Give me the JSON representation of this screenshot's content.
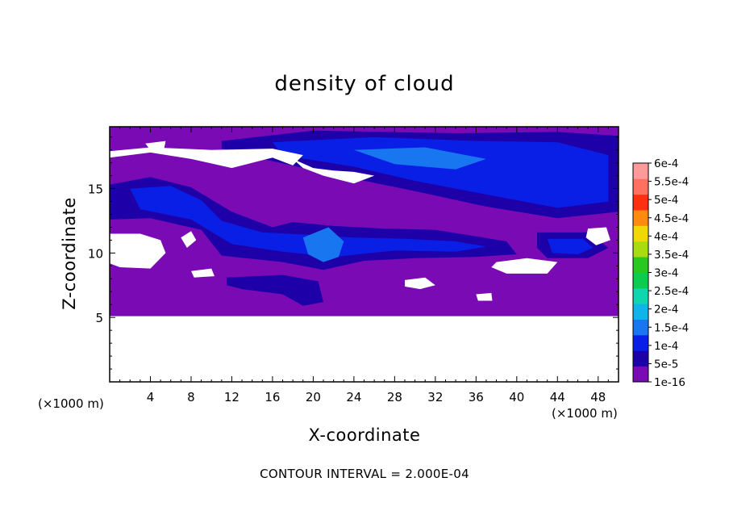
{
  "chart_data": {
    "type": "heatmap",
    "title": "density of cloud",
    "xlabel": "X-coordinate",
    "ylabel": "Z-coordinate",
    "x_unit": "(×1000 m)",
    "y_unit": "(×1000 m)",
    "xlim": [
      0,
      50
    ],
    "ylim": [
      0,
      19.8
    ],
    "x_ticks": [
      4,
      8,
      12,
      16,
      20,
      24,
      28,
      32,
      36,
      40,
      44,
      48
    ],
    "y_ticks": [
      5,
      10,
      15
    ],
    "footer": "CONTOUR INTERVAL = 2.000E-04",
    "colorbar": {
      "levels": [
        "1e-16",
        "5e-5",
        "1e-4",
        "1.5e-4",
        "2e-4",
        "2.5e-4",
        "3e-4",
        "3.5e-4",
        "4e-4",
        "4.5e-4",
        "5e-4",
        "5.5e-4",
        "6e-4"
      ],
      "colors": [
        "#7a0ab4",
        "#1e00a8",
        "#0a1fe6",
        "#1877f0",
        "#10b4e8",
        "#10d6b0",
        "#0ccc50",
        "#28c820",
        "#a8dc10",
        "#f0d808",
        "#ff8a10",
        "#ff3010",
        "#ff7060",
        "#ff9a9a"
      ]
    },
    "field": {
      "background_level": "1e-16",
      "cloud_base_z": 5.1,
      "regions": [
        {
          "level": "5e-5",
          "polygon": [
            [
              11,
              18.7
            ],
            [
              20,
              19.5
            ],
            [
              34,
              19.3
            ],
            [
              44,
              19.4
            ],
            [
              50,
              19.1
            ],
            [
              50,
              13.2
            ],
            [
              44,
              12.7
            ],
            [
              37,
              13.6
            ],
            [
              30,
              14.8
            ],
            [
              22,
              16.1
            ],
            [
              15,
              17.3
            ],
            [
              11,
              18.1
            ]
          ]
        },
        {
          "level": "1e-4",
          "polygon": [
            [
              16,
              18.6
            ],
            [
              26,
              19.0
            ],
            [
              36,
              18.7
            ],
            [
              44,
              18.6
            ],
            [
              49,
              17.6
            ],
            [
              49,
              14.0
            ],
            [
              44,
              13.5
            ],
            [
              38,
              14.4
            ],
            [
              30,
              15.6
            ],
            [
              24,
              16.7
            ],
            [
              17,
              17.6
            ]
          ]
        },
        {
          "level": "1.5e-4",
          "polygon": [
            [
              24,
              18.0
            ],
            [
              31,
              18.2
            ],
            [
              37,
              17.3
            ],
            [
              34,
              16.5
            ],
            [
              28,
              16.9
            ]
          ]
        },
        {
          "level": "5e-5",
          "polygon": [
            [
              0,
              15.3
            ],
            [
              4,
              15.9
            ],
            [
              8,
              15.1
            ],
            [
              12,
              13.2
            ],
            [
              16,
              12.0
            ],
            [
              18,
              12.4
            ],
            [
              22,
              12.1
            ],
            [
              27,
              11.9
            ],
            [
              32,
              11.8
            ],
            [
              36,
              11.3
            ],
            [
              39,
              10.9
            ],
            [
              40,
              9.9
            ],
            [
              36,
              9.7
            ],
            [
              30,
              9.6
            ],
            [
              25,
              9.4
            ],
            [
              21,
              8.7
            ],
            [
              17,
              9.3
            ],
            [
              11,
              9.8
            ],
            [
              9,
              11.8
            ],
            [
              4,
              12.7
            ],
            [
              0,
              12.6
            ]
          ]
        },
        {
          "level": "1e-4",
          "polygon": [
            [
              2,
              15.0
            ],
            [
              6,
              15.2
            ],
            [
              9,
              14.1
            ],
            [
              11,
              12.5
            ],
            [
              15,
              11.6
            ],
            [
              20,
              11.4
            ],
            [
              24,
              11.2
            ],
            [
              29,
              11.1
            ],
            [
              34,
              10.9
            ],
            [
              37,
              10.5
            ],
            [
              34,
              10.1
            ],
            [
              28,
              10.2
            ],
            [
              22,
              9.7
            ],
            [
              17,
              10.1
            ],
            [
              12,
              10.7
            ],
            [
              8,
              12.6
            ],
            [
              3,
              13.4
            ]
          ]
        },
        {
          "level": "1.5e-4",
          "polygon": [
            [
              19,
              11.2
            ],
            [
              21.5,
              12.0
            ],
            [
              23,
              10.9
            ],
            [
              22.5,
              9.7
            ],
            [
              21,
              9.3
            ],
            [
              19.5,
              9.9
            ]
          ]
        },
        {
          "level": "5e-5",
          "polygon": [
            [
              42,
              11.6
            ],
            [
              47,
              11.6
            ],
            [
              49,
              10.4
            ],
            [
              47,
              9.6
            ],
            [
              43,
              9.6
            ],
            [
              42,
              10.4
            ]
          ]
        },
        {
          "level": "1e-4",
          "polygon": [
            [
              43,
              11.1
            ],
            [
              46.5,
              11.1
            ],
            [
              47.5,
              10.4
            ],
            [
              46,
              9.9
            ],
            [
              43.5,
              10.0
            ]
          ]
        },
        {
          "level": "5e-5",
          "polygon": [
            [
              11.5,
              8.1
            ],
            [
              17,
              8.3
            ],
            [
              20.5,
              7.8
            ],
            [
              21,
              6.2
            ],
            [
              19,
              5.9
            ],
            [
              17,
              6.8
            ],
            [
              13,
              7.2
            ],
            [
              11.5,
              7.5
            ]
          ]
        }
      ],
      "clear_patches": [
        [
          [
            0,
            17.4
          ],
          [
            4,
            17.8
          ],
          [
            8,
            17.3
          ],
          [
            12,
            16.6
          ],
          [
            16,
            17.4
          ],
          [
            18,
            16.8
          ],
          [
            19,
            17.6
          ],
          [
            16,
            18.1
          ],
          [
            10,
            18.0
          ],
          [
            4,
            18.2
          ],
          [
            0,
            17.9
          ]
        ],
        [
          [
            18,
            17.3
          ],
          [
            20,
            16.6
          ],
          [
            22,
            16.4
          ],
          [
            24,
            16.3
          ],
          [
            26,
            16.0
          ],
          [
            24,
            15.4
          ],
          [
            21,
            16.0
          ],
          [
            19,
            16.6
          ]
        ],
        [
          [
            3.5,
            18.5
          ],
          [
            5.5,
            18.7
          ],
          [
            5.3,
            17.9
          ],
          [
            4.2,
            17.8
          ]
        ],
        [
          [
            0,
            11.5
          ],
          [
            3,
            11.5
          ],
          [
            5,
            11.0
          ],
          [
            5.5,
            10.0
          ],
          [
            4,
            8.8
          ],
          [
            1,
            8.9
          ],
          [
            0,
            9.2
          ]
        ],
        [
          [
            7,
            11.2
          ],
          [
            8,
            11.7
          ],
          [
            8.5,
            11.0
          ],
          [
            7.6,
            10.4
          ]
        ],
        [
          [
            38,
            9.3
          ],
          [
            41,
            9.6
          ],
          [
            44,
            9.3
          ],
          [
            43,
            8.4
          ],
          [
            39,
            8.4
          ],
          [
            37.5,
            8.9
          ]
        ],
        [
          [
            29,
            7.9
          ],
          [
            31,
            8.1
          ],
          [
            32,
            7.5
          ],
          [
            30.5,
            7.2
          ],
          [
            29,
            7.4
          ]
        ],
        [
          [
            47,
            11.9
          ],
          [
            48.8,
            12.0
          ],
          [
            49.2,
            11.0
          ],
          [
            47.8,
            10.6
          ],
          [
            46.8,
            11.2
          ]
        ],
        [
          [
            8,
            8.6
          ],
          [
            10,
            8.8
          ],
          [
            10.3,
            8.2
          ],
          [
            8.3,
            8.1
          ]
        ],
        [
          [
            36,
            6.8
          ],
          [
            37.5,
            6.9
          ],
          [
            37.6,
            6.3
          ],
          [
            36.2,
            6.3
          ]
        ]
      ]
    }
  }
}
